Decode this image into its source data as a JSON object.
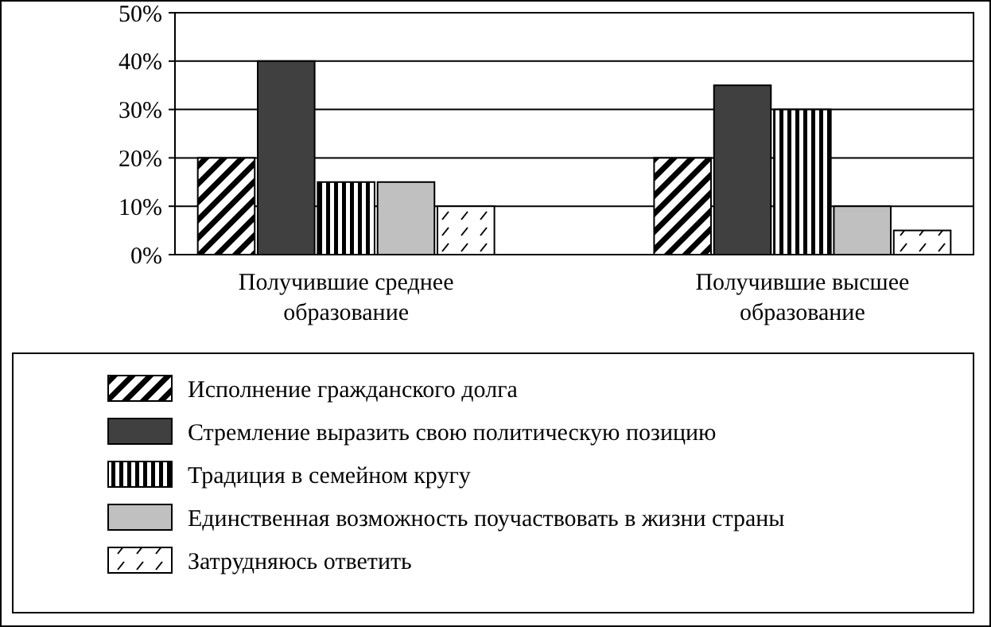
{
  "chart_data": {
    "type": "bar",
    "categories": [
      "Получившие среднее образование",
      "Получившие высшее образование"
    ],
    "series": [
      {
        "name": "Исполнение гражданского долга",
        "color": "#000000",
        "values": [
          20,
          20
        ]
      },
      {
        "name": "Стремление выразить свою политическую позицию",
        "color": "#404040",
        "values": [
          40,
          35
        ]
      },
      {
        "name": "Традиция в семейном кругу",
        "color": "#000000",
        "values": [
          15,
          30
        ]
      },
      {
        "name": "Единственная возможность поучаствовать в жизни страны",
        "color": "#c0c0c0",
        "values": [
          15,
          10
        ]
      },
      {
        "name": "Затрудняюсь ответить",
        "color": "#000000",
        "values": [
          10,
          5
        ]
      }
    ],
    "ylim": [
      0,
      50
    ],
    "yticks": [
      {
        "value": 0,
        "label": "0%"
      },
      {
        "value": 10,
        "label": "10%"
      },
      {
        "value": 20,
        "label": "20%"
      },
      {
        "value": 30,
        "label": "30%"
      },
      {
        "value": 40,
        "label": "40%"
      },
      {
        "value": 50,
        "label": "50%"
      }
    ],
    "grid": true,
    "legend": "bottom"
  }
}
